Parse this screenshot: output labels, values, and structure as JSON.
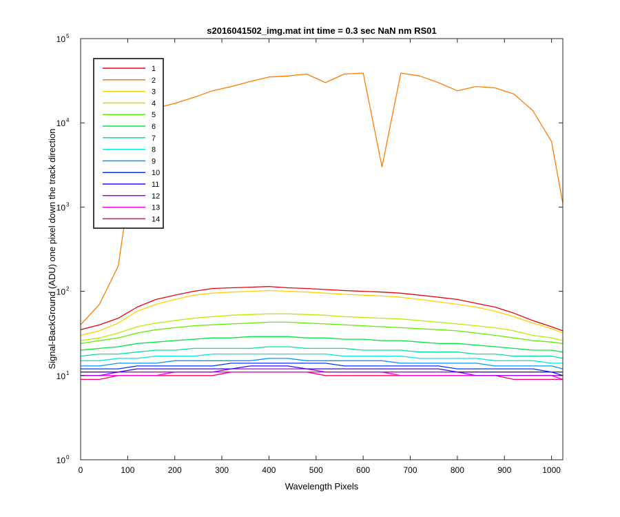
{
  "chart_data": {
    "type": "line",
    "title": "s2016041502_img.mat int time = 0.3 sec  NaN nm RS01",
    "xlabel": "Wavelength Pixels",
    "ylabel": "Signal-BackGround (ADU) one pixel down the track direction",
    "xlim": [
      0,
      1024
    ],
    "ylim": [
      1,
      100000
    ],
    "yscale": "log",
    "grid": false,
    "legend_position": "top-left",
    "x_ticks": [
      "0",
      "100",
      "200",
      "300",
      "400",
      "500",
      "600",
      "700",
      "800",
      "900",
      "1000"
    ],
    "y_ticks": [
      {
        "base": "10",
        "exp": "0"
      },
      {
        "base": "10",
        "exp": "1"
      },
      {
        "base": "10",
        "exp": "2"
      },
      {
        "base": "10",
        "exp": "3"
      },
      {
        "base": "10",
        "exp": "4"
      },
      {
        "base": "10",
        "exp": "5"
      }
    ],
    "x": [
      0,
      40,
      80,
      120,
      160,
      200,
      240,
      280,
      320,
      360,
      400,
      440,
      480,
      520,
      560,
      600,
      640,
      680,
      720,
      760,
      800,
      840,
      880,
      920,
      960,
      1000,
      1024
    ],
    "series": [
      {
        "name": "1",
        "color": "#e8000b",
        "values": [
          35,
          40,
          48,
          65,
          80,
          90,
          100,
          108,
          110,
          112,
          114,
          110,
          108,
          105,
          102,
          100,
          98,
          95,
          90,
          85,
          80,
          72,
          65,
          55,
          45,
          38,
          34
        ]
      },
      {
        "name": "2",
        "color": "#ff7b00",
        "values": [
          40,
          70,
          200,
          7000,
          15000,
          17000,
          20000,
          24000,
          27000,
          31000,
          35000,
          36000,
          38000,
          30000,
          38000,
          39000,
          3000,
          39000,
          36000,
          30000,
          24000,
          27000,
          26000,
          22000,
          14000,
          6000,
          1100
        ]
      },
      {
        "name": "3",
        "color": "#ffd000",
        "values": [
          30,
          34,
          42,
          58,
          70,
          80,
          90,
          95,
          98,
          100,
          102,
          100,
          98,
          95,
          92,
          90,
          88,
          85,
          80,
          75,
          70,
          65,
          58,
          50,
          42,
          36,
          32
        ]
      },
      {
        "name": "4",
        "color": "#b5ef00",
        "values": [
          26,
          28,
          32,
          38,
          42,
          45,
          48,
          50,
          52,
          53,
          54,
          54,
          53,
          52,
          50,
          49,
          48,
          47,
          45,
          43,
          41,
          39,
          37,
          34,
          30,
          28,
          26
        ]
      },
      {
        "name": "5",
        "color": "#5cf000",
        "values": [
          24,
          26,
          28,
          32,
          35,
          37,
          39,
          40,
          41,
          42,
          43,
          43,
          42,
          41,
          40,
          39,
          38,
          37,
          36,
          35,
          34,
          32,
          30,
          28,
          26,
          25,
          24
        ]
      },
      {
        "name": "6",
        "color": "#00e640",
        "values": [
          20,
          21,
          22,
          24,
          25,
          26,
          27,
          28,
          28,
          29,
          29,
          29,
          28,
          28,
          27,
          27,
          26,
          26,
          25,
          24,
          24,
          23,
          22,
          21,
          20,
          20,
          19
        ]
      },
      {
        "name": "7",
        "color": "#00e2a0",
        "values": [
          17,
          18,
          18,
          19,
          20,
          20,
          21,
          21,
          21,
          21,
          22,
          22,
          21,
          21,
          21,
          20,
          20,
          20,
          19,
          19,
          19,
          18,
          18,
          17,
          17,
          17,
          16
        ]
      },
      {
        "name": "8",
        "color": "#00e8e0",
        "values": [
          15,
          15,
          16,
          16,
          17,
          17,
          17,
          18,
          18,
          18,
          18,
          18,
          18,
          18,
          17,
          17,
          17,
          17,
          16,
          16,
          16,
          16,
          15,
          15,
          15,
          14,
          14
        ]
      },
      {
        "name": "9",
        "color": "#0095ff",
        "values": [
          13,
          13,
          14,
          14,
          14,
          15,
          15,
          15,
          15,
          15,
          16,
          16,
          15,
          15,
          15,
          15,
          15,
          14,
          14,
          14,
          14,
          14,
          13,
          13,
          13,
          13,
          12
        ]
      },
      {
        "name": "10",
        "color": "#0033ff",
        "values": [
          12,
          12,
          12,
          13,
          13,
          13,
          13,
          13,
          14,
          14,
          14,
          14,
          14,
          14,
          13,
          13,
          13,
          13,
          13,
          13,
          12,
          12,
          12,
          12,
          12,
          11,
          11
        ]
      },
      {
        "name": "11",
        "color": "#3300ff",
        "values": [
          11,
          11,
          11,
          12,
          12,
          12,
          12,
          12,
          12,
          13,
          13,
          13,
          12,
          12,
          12,
          12,
          12,
          12,
          12,
          12,
          11,
          11,
          11,
          11,
          11,
          11,
          10
        ]
      },
      {
        "name": "12",
        "color": "#a200ff",
        "values": [
          10,
          10,
          11,
          11,
          11,
          11,
          11,
          11,
          12,
          12,
          12,
          12,
          12,
          11,
          11,
          11,
          11,
          11,
          11,
          11,
          11,
          10,
          10,
          10,
          10,
          10,
          10
        ]
      },
      {
        "name": "13",
        "color": "#ff00e1",
        "values": [
          10,
          10,
          10,
          10,
          10,
          11,
          11,
          11,
          11,
          11,
          11,
          11,
          11,
          11,
          11,
          11,
          11,
          10,
          10,
          10,
          10,
          10,
          10,
          10,
          10,
          10,
          9
        ]
      },
      {
        "name": "14",
        "color": "#ff0066",
        "values": [
          9,
          9,
          10,
          10,
          10,
          10,
          10,
          10,
          11,
          11,
          11,
          11,
          11,
          10,
          10,
          10,
          10,
          10,
          10,
          10,
          10,
          10,
          10,
          9,
          9,
          9,
          9
        ]
      }
    ]
  }
}
